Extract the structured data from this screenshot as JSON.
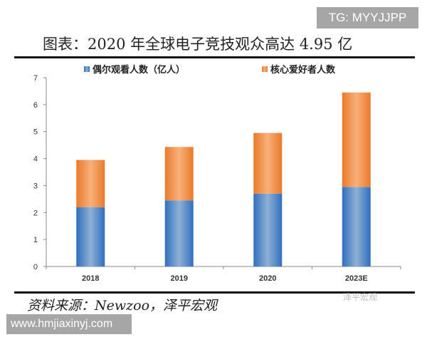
{
  "badge": "TG: MYYJJPP",
  "watermark_url": "www.hmjiaxinyj.com",
  "watermark_brand": "泽平宏观",
  "source": "资料来源：Newzoo，泽平宏观",
  "colors": {
    "blue": "#3a78c2",
    "orange": "#ee8636"
  },
  "chart_data": {
    "type": "bar",
    "stacked": true,
    "title": "图表：2020 年全球电子竞技观众高达 4.95 亿",
    "categories": [
      "2018",
      "2019",
      "2020",
      "2023E"
    ],
    "series": [
      {
        "name": "偶尔观看人数（亿人）",
        "values": [
          2.2,
          2.45,
          2.7,
          2.95
        ]
      },
      {
        "name": "核心爱好者人数",
        "values": [
          1.75,
          1.98,
          2.25,
          3.5
        ]
      }
    ],
    "yticks": [
      "0",
      "1",
      "2",
      "3",
      "4",
      "5",
      "6",
      "7"
    ],
    "ylim": [
      0,
      7
    ],
    "xlabel": "",
    "ylabel": "",
    "legend": "top",
    "grid": false
  }
}
